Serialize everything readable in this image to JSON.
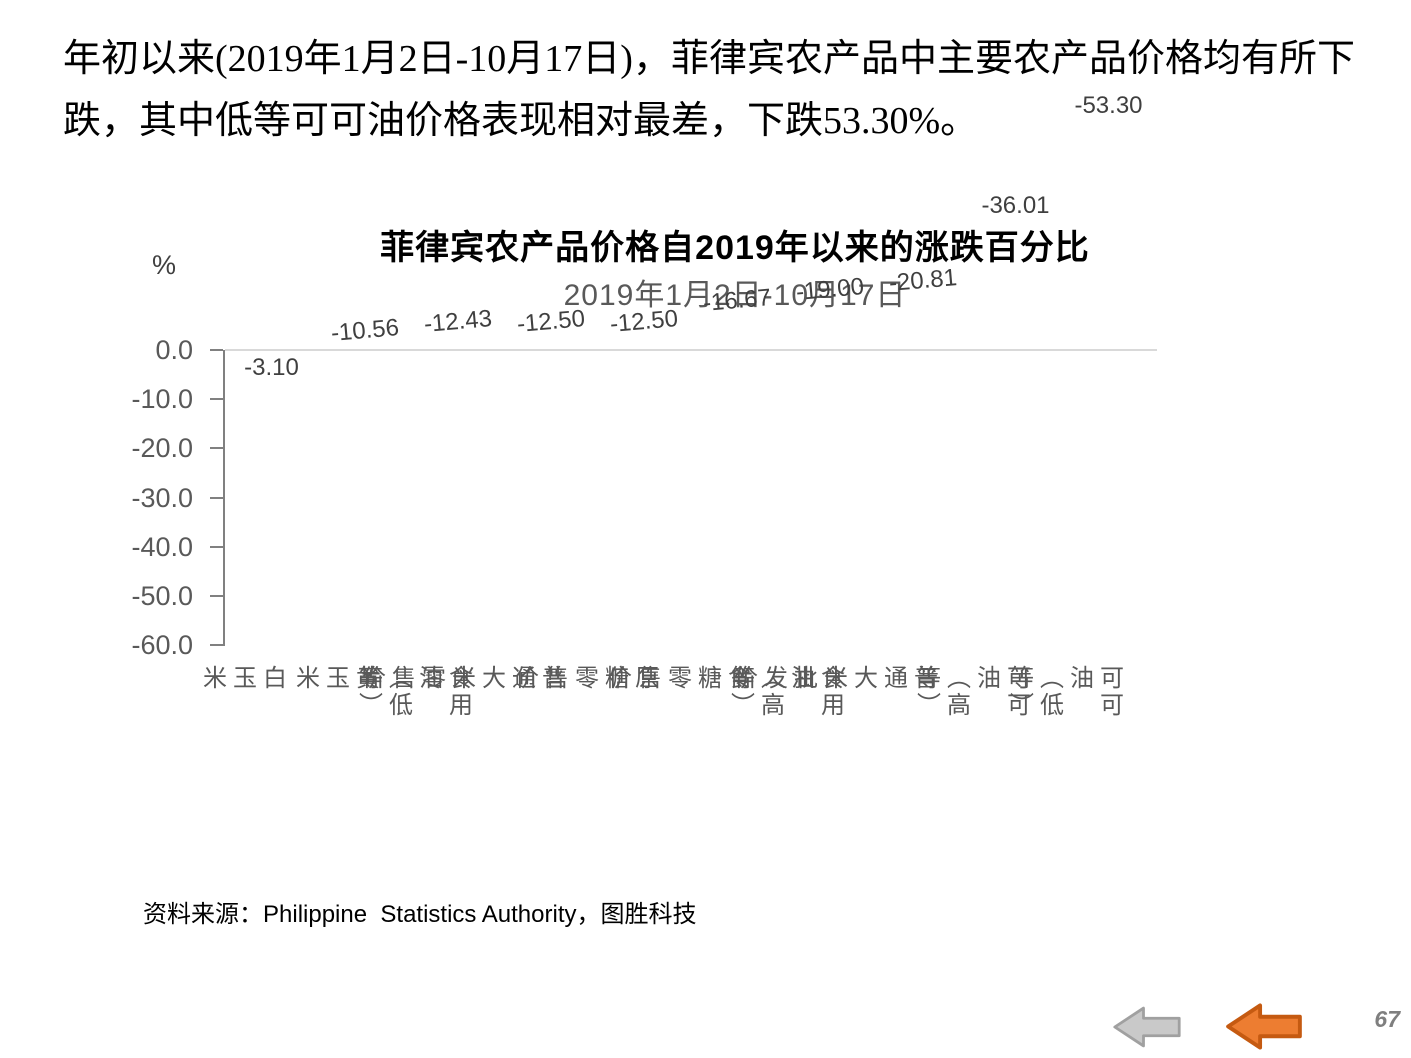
{
  "header": {
    "paragraph": "年初以来(2019年1月2日-10月17日)，菲律宾农产品中主要农产品价格均有所下跌，其中低等可可油价格表现相对最差，下跌53.30%。"
  },
  "chart_data": {
    "type": "bar",
    "title": "菲律宾农产品价格自2019年以来的涨跌百分比",
    "subtitle": "2019年1月2日-10月17日",
    "axis_unit": "%",
    "categories": [
      "白玉米",
      "黄玉米",
      "食用油（低等）",
      "普通大米零售价",
      "原糖零售价",
      "食糖零售价",
      "食用油（高等）",
      "普通大米批发价",
      "可可油（高等）",
      "可可油（低等）"
    ],
    "values": [
      -3.1,
      -10.56,
      -12.43,
      -12.5,
      -12.5,
      -16.67,
      -19.0,
      -20.81,
      -36.01,
      -53.3
    ],
    "data_labels": [
      "-3.10",
      "-10.56",
      "-12.43",
      "-12.50",
      "-12.50",
      "-16.67",
      "-19.00",
      "-20.81",
      "-36.01",
      "-53.30"
    ],
    "ylim": [
      -60,
      0
    ],
    "ytick_labels": [
      "0.0",
      "-10.0",
      "-20.0",
      "-30.0",
      "-40.0",
      "-50.0",
      "-60.0"
    ],
    "bar_color": "#F9BF8F",
    "legend": "none",
    "grid": "zero-baseline-only",
    "rotated_label_indices": [
      1,
      2,
      3,
      4,
      5,
      6,
      7
    ]
  },
  "source": {
    "prefix": "资料来源：",
    "latin": "Philippine  Statistics Authority",
    "suffix": "，图胜科技"
  },
  "footer": {
    "page_number": "67"
  },
  "nav": {
    "back_icon": "gray-left-arrow",
    "forward_icon": "orange-left-arrow"
  },
  "colors": {
    "bar": "#F9BF8F",
    "axis_line": "#808080",
    "zero_baseline": "#D9D9D9",
    "tick_text": "#595959",
    "category_text": "#595959",
    "subtitle_text": "#595959",
    "data_label_text": "#3F3F3F",
    "arrow_gray_fill": "#C9C9C9",
    "arrow_gray_stroke": "#A0A0A0",
    "arrow_orange_fill": "#ED7D31",
    "arrow_orange_stroke": "#C55A11",
    "page_number_text": "#7F7F7F"
  }
}
